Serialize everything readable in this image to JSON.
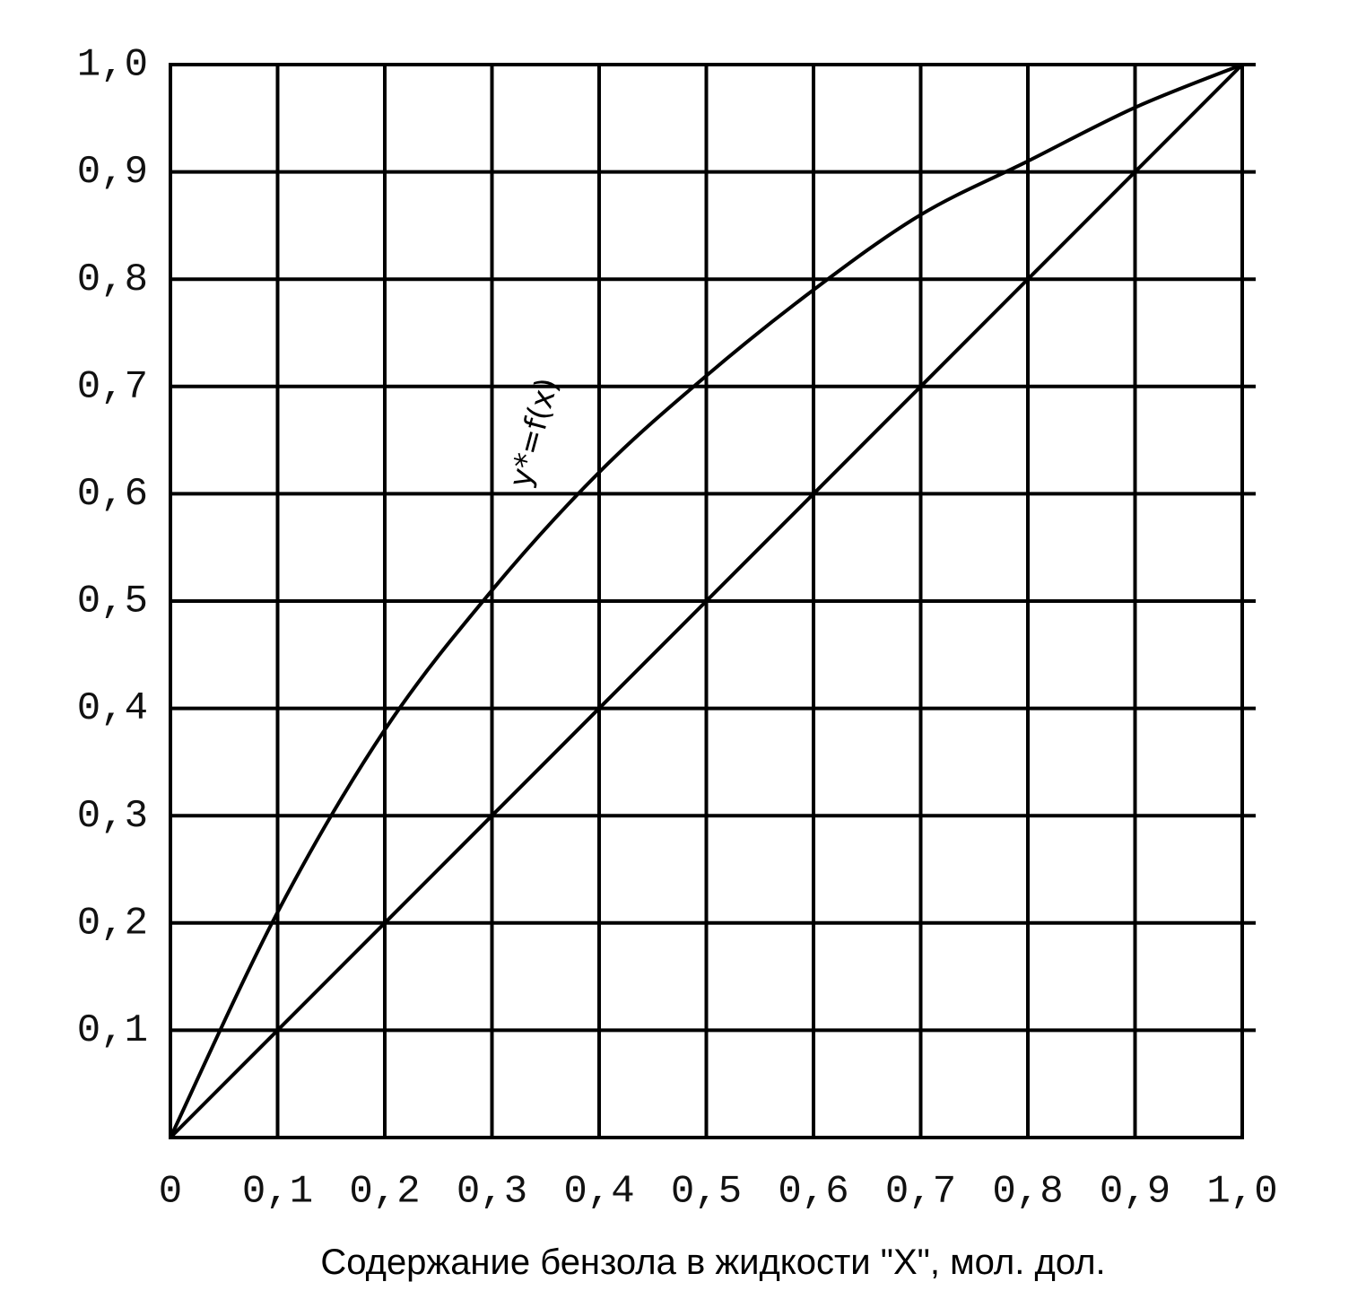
{
  "chart_data": {
    "type": "line",
    "x_label": "Содержание бензола в  жидкости \"X\", мол. дол.",
    "annotation": "y*=f(x)",
    "x": [
      0,
      0.1,
      0.2,
      0.3,
      0.4,
      0.5,
      0.6,
      0.7,
      0.8,
      0.9,
      1.0
    ],
    "series": [
      {
        "color": "#000000",
        "values": [
          0,
          0.21,
          0.38,
          0.51,
          0.62,
          0.71,
          0.79,
          0.86,
          0.91,
          0.96,
          1.0
        ]
      },
      {
        "color": "#000000",
        "values": [
          0,
          0.1,
          0.2,
          0.3,
          0.4,
          0.5,
          0.6,
          0.7,
          0.8,
          0.9,
          1.0
        ]
      }
    ],
    "xlim": [
      0,
      1.0
    ],
    "ylim": [
      0,
      1.0
    ],
    "xticks": [
      0,
      {
        "value": 0.1,
        "label": "0,1"
      },
      {
        "value": 0.2,
        "label": "0,2"
      },
      {
        "value": 0.3,
        "label": "0,3"
      },
      {
        "value": 0.4,
        "label": "0,4"
      },
      {
        "value": 0.5,
        "label": "0,5"
      },
      {
        "value": 0.6,
        "label": "0,6"
      },
      {
        "value": 0.7,
        "label": "0,7"
      },
      {
        "value": 0.8,
        "label": "0,8"
      },
      {
        "value": 0.9,
        "label": "0,9"
      },
      {
        "value": 1.0,
        "label": "1,0"
      }
    ],
    "yticks": [
      {
        "value": 0.1,
        "label": "0,1"
      },
      {
        "value": 0.2,
        "label": "0,2"
      },
      {
        "value": 0.3,
        "label": "0,3"
      },
      {
        "value": 0.4,
        "label": "0,4"
      },
      {
        "value": 0.5,
        "label": "0,5"
      },
      {
        "value": 0.6,
        "label": "0,6"
      },
      {
        "value": 0.7,
        "label": "0,7"
      },
      {
        "value": 0.8,
        "label": "0,8"
      },
      {
        "value": 0.9,
        "label": "0,9"
      },
      {
        "value": 1.0,
        "label": "1,0"
      }
    ],
    "grid": true
  }
}
